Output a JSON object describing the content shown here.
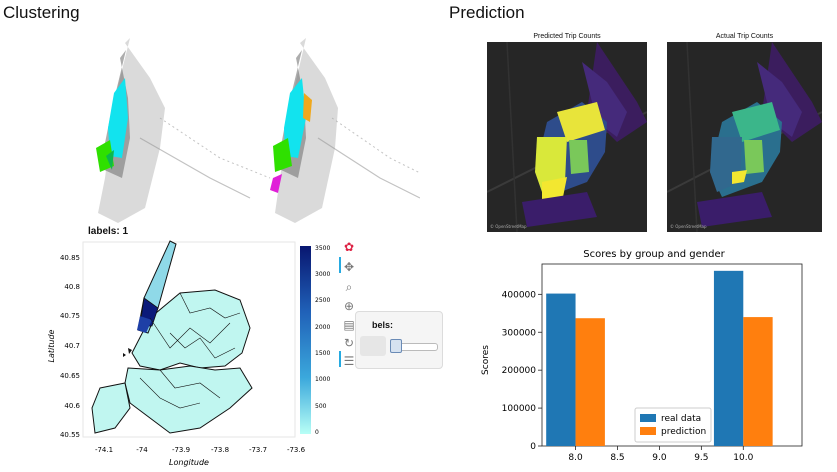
{
  "sections": {
    "clustering_title": "Clustering",
    "prediction_title": "Prediction"
  },
  "cluster_map": {
    "title": "labels: 1",
    "ylabel": "Latitude",
    "xlabel": "Longitude",
    "yticks": [
      "40.85",
      "40.8",
      "40.75",
      "40.7",
      "40.65",
      "40.6",
      "40.55"
    ],
    "xticks": [
      "-74.1",
      "-74",
      "-73.9",
      "-73.8",
      "-73.7",
      "-73.6"
    ],
    "colorbar_ticks": [
      "3500",
      "3000",
      "2500",
      "2000",
      "1500",
      "1000",
      "500",
      "0"
    ]
  },
  "widget": {
    "label": "bels:",
    "slider_value": 1
  },
  "toolbar": {
    "icons": [
      "bokeh-logo-icon",
      "pan-icon",
      "zoom-icon",
      "wheel-zoom-icon",
      "save-icon",
      "reset-icon",
      "hover-icon"
    ]
  },
  "prediction_maps": {
    "predicted_title": "Predicted Trip Counts",
    "actual_title": "Actual Trip Counts"
  },
  "chart_data": {
    "type": "bar",
    "title": "Scores by group and gender",
    "xlabel": "",
    "ylabel": "Scores",
    "x_ticks": [
      "8.0",
      "8.5",
      "9.0",
      "9.5",
      "10.0"
    ],
    "xlim": [
      7.6,
      10.7
    ],
    "ylim": [
      0,
      480000
    ],
    "y_ticks": [
      "0",
      "100000",
      "200000",
      "300000",
      "400000"
    ],
    "categories": [
      8.0,
      10.0
    ],
    "series": [
      {
        "name": "real data",
        "color": "#1f77b4",
        "values": [
          402000,
          462000
        ]
      },
      {
        "name": "prediction",
        "color": "#ff7f0e",
        "values": [
          337000,
          340000
        ]
      }
    ],
    "legend_position": "bottom-center",
    "grid": false
  }
}
